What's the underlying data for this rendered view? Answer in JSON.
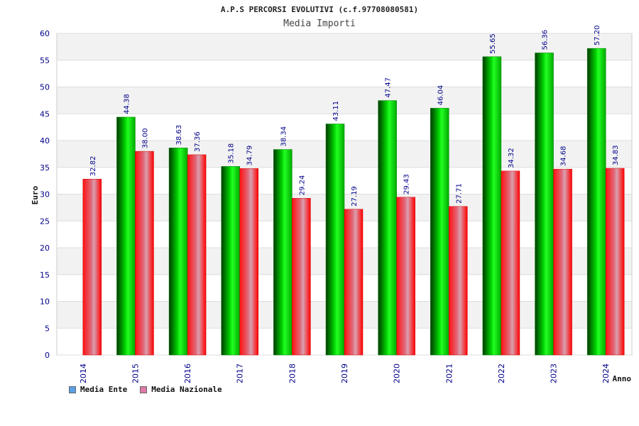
{
  "chart_data": {
    "type": "bar",
    "title": "A.P.S PERCORSI EVOLUTIVI (c.f.97708080581)",
    "subtitle": "Media Importi",
    "xlabel": "Anno",
    "ylabel": "Euro",
    "ylim": [
      0,
      60
    ],
    "yticks": [
      0,
      5,
      10,
      15,
      20,
      25,
      30,
      35,
      40,
      45,
      50,
      55,
      60
    ],
    "categories": [
      "2014",
      "2015",
      "2016",
      "2017",
      "2018",
      "2019",
      "2020",
      "2021",
      "2022",
      "2023",
      "2024"
    ],
    "series": [
      {
        "name": "Media Ente",
        "values": [
          null,
          44.38,
          38.63,
          35.18,
          38.34,
          43.11,
          47.47,
          46.04,
          55.65,
          56.36,
          57.2
        ],
        "labels": [
          null,
          "44.38",
          "38.63",
          "35.18",
          "38.34",
          "43.11",
          "47.47",
          "46.04",
          "55.65",
          "56.36",
          "57.20"
        ],
        "color": "#00c000",
        "legend_color": "#5aa0e6"
      },
      {
        "name": "Media Nazionale",
        "values": [
          32.82,
          38.0,
          37.36,
          34.79,
          29.24,
          27.19,
          29.43,
          27.71,
          34.32,
          34.68,
          34.83
        ],
        "labels": [
          "32.82",
          "38.00",
          "37.36",
          "34.79",
          "29.24",
          "27.19",
          "29.43",
          "27.71",
          "34.32",
          "34.68",
          "34.83"
        ],
        "color": "#ff0000",
        "legend_color": "#e07aa8"
      }
    ],
    "grid": true,
    "legend_position": "bottom-left"
  }
}
